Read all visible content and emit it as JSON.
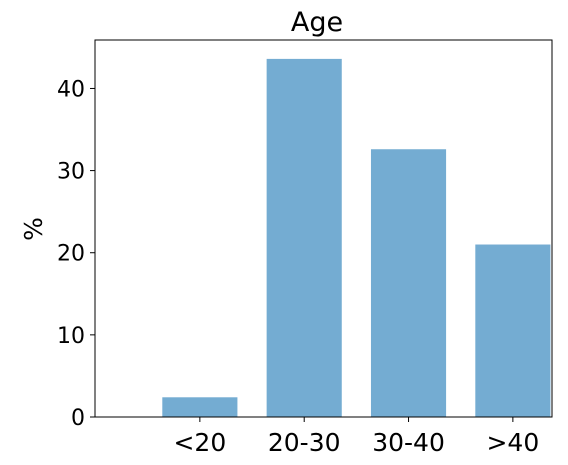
{
  "chart_data": {
    "type": "bar",
    "title": "Age",
    "xlabel": "",
    "ylabel": "%",
    "categories": [
      "<20",
      "20-30",
      "30-40",
      ">40"
    ],
    "values": [
      2.4,
      43.6,
      32.6,
      21.0
    ],
    "ylim": [
      0,
      45.9
    ],
    "yticks": [
      0,
      10,
      20,
      30,
      40
    ],
    "ytick_labels": [
      "0",
      "10",
      "20",
      "30",
      "40"
    ],
    "grid": false,
    "legend": "none",
    "colors": {
      "bar": "#74acd2",
      "axis": "#000000",
      "background": "#ffffff"
    }
  }
}
